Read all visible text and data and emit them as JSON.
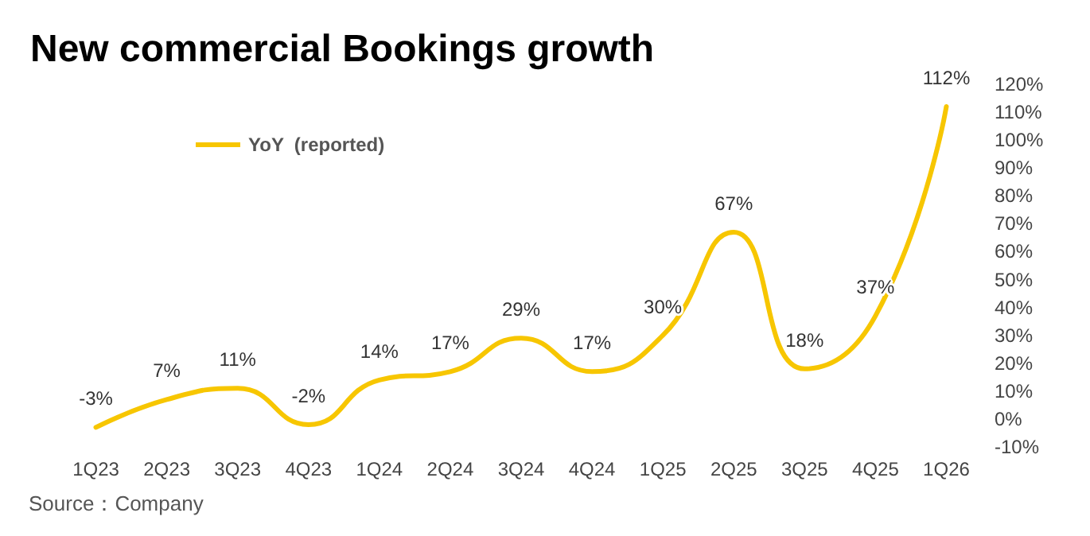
{
  "chart_data": {
    "type": "line",
    "title": "New commercial Bookings growth",
    "categories": [
      "1Q23",
      "2Q23",
      "3Q23",
      "4Q23",
      "1Q24",
      "2Q24",
      "3Q24",
      "4Q24",
      "1Q25",
      "2Q25",
      "3Q25",
      "4Q25",
      "1Q26"
    ],
    "series": [
      {
        "name": "YoY  (reported)",
        "color": "#f7c600",
        "values": [
          -3,
          7,
          11,
          -2,
          14,
          17,
          29,
          17,
          30,
          67,
          18,
          37,
          112
        ],
        "value_labels": [
          "-3%",
          "7%",
          "11%",
          "-2%",
          "14%",
          "17%",
          "29%",
          "17%",
          "30%",
          "67%",
          "18%",
          "37%",
          "112%"
        ]
      }
    ],
    "ylim": [
      -10,
      120
    ],
    "yticks": [
      {
        "value": -10,
        "label": "-10%"
      },
      {
        "value": 0,
        "label": "0%"
      },
      {
        "value": 10,
        "label": "10%"
      },
      {
        "value": 20,
        "label": "20%"
      },
      {
        "value": 30,
        "label": "30%"
      },
      {
        "value": 40,
        "label": "40%"
      },
      {
        "value": 50,
        "label": "50%"
      },
      {
        "value": 60,
        "label": "60%"
      },
      {
        "value": 70,
        "label": "70%"
      },
      {
        "value": 80,
        "label": "80%"
      },
      {
        "value": 90,
        "label": "90%"
      },
      {
        "value": 100,
        "label": "100%"
      },
      {
        "value": 110,
        "label": "110%"
      },
      {
        "value": 120,
        "label": "120%"
      }
    ],
    "legend": "top left",
    "grid": false,
    "marker": "none",
    "annotations": [
      "Source：Company"
    ]
  }
}
